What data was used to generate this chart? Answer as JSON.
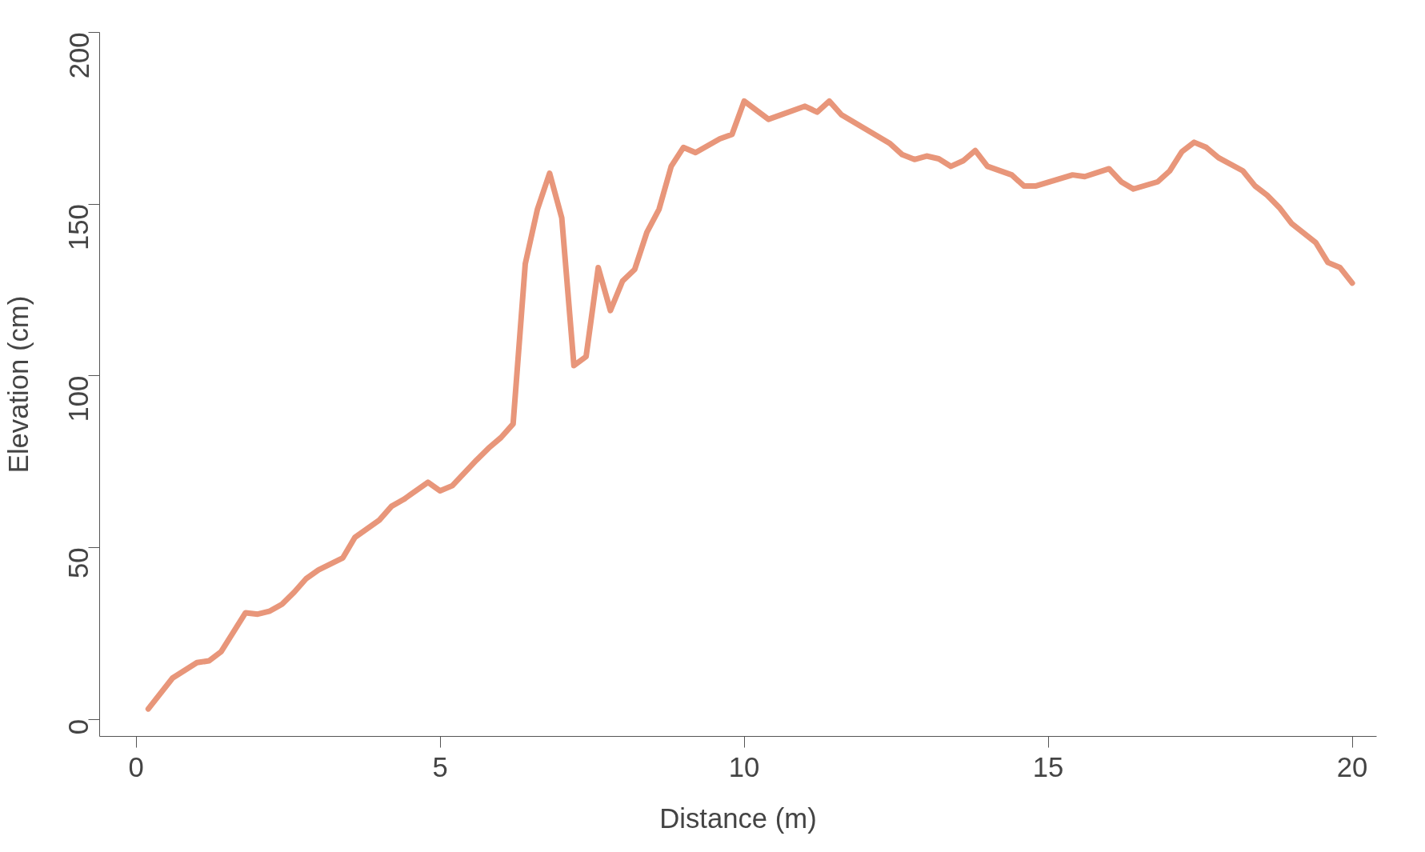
{
  "chart_data": {
    "type": "line",
    "xlabel": "Distance (m)",
    "ylabel": "Elevation (cm)",
    "xlim": [
      -0.6,
      20.4
    ],
    "ylim": [
      -5,
      200
    ],
    "xticks": [
      0,
      5,
      10,
      15,
      20
    ],
    "yticks": [
      0,
      50,
      100,
      150,
      200
    ],
    "grid": false,
    "series": [
      {
        "color": "#e8967a",
        "x": [
          0.2,
          0.6,
          1.0,
          1.2,
          1.4,
          1.8,
          2.0,
          2.2,
          2.4,
          2.6,
          2.8,
          3.0,
          3.4,
          3.6,
          4.0,
          4.2,
          4.4,
          4.8,
          5.0,
          5.2,
          5.6,
          5.8,
          6.0,
          6.2,
          6.4,
          6.6,
          6.8,
          7.0,
          7.2,
          7.4,
          7.6,
          7.8,
          8.0,
          8.2,
          8.4,
          8.6,
          8.8,
          9.0,
          9.2,
          9.6,
          9.8,
          10.0,
          10.4,
          11.0,
          11.2,
          11.4,
          11.6,
          12.4,
          12.6,
          12.8,
          13.0,
          13.2,
          13.4,
          13.6,
          13.8,
          14.0,
          14.4,
          14.6,
          14.8,
          15.4,
          15.6,
          16.0,
          16.2,
          16.4,
          16.8,
          17.0,
          17.2,
          17.4,
          17.6,
          17.8,
          18.2,
          18.4,
          18.6,
          18.8,
          19.0,
          19.4,
          19.6,
          19.8,
          20.0
        ],
        "values": [
          3,
          12,
          16.5,
          17,
          19.7,
          31,
          30.6,
          31.5,
          33.5,
          37,
          41,
          43.5,
          47,
          53,
          58,
          62,
          64,
          69,
          66.5,
          68,
          75.5,
          79,
          82,
          86,
          132.6,
          148.5,
          159,
          146,
          103,
          105.6,
          131.5,
          119,
          127.6,
          131,
          141.8,
          148.5,
          161,
          166.5,
          165,
          169,
          170.3,
          180,
          174.7,
          178.5,
          176.8,
          180,
          176,
          167.6,
          164.4,
          163,
          164,
          163.2,
          161,
          162.6,
          165.6,
          161,
          158.5,
          155.3,
          155.3,
          158.5,
          158,
          160.3,
          156.5,
          154.4,
          156.5,
          159.7,
          165.3,
          168,
          166.5,
          163.5,
          159.7,
          155.3,
          152.6,
          149,
          144.4,
          138.8,
          133,
          131.5,
          127
        ]
      }
    ]
  }
}
